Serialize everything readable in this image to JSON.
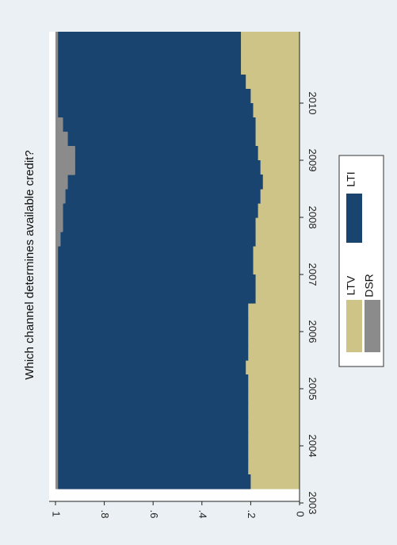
{
  "chart_data": {
    "type": "area",
    "title": "Which channel determines available credit?",
    "xlabel": "",
    "ylabel": "",
    "x": [
      "2003m1",
      "2003m4",
      "2003m7",
      "2003m10",
      "2004m1",
      "2004m4",
      "2004m7",
      "2004m10",
      "2005m1",
      "2005m4",
      "2005m7",
      "2005m10",
      "2006m1",
      "2006m4",
      "2006m7",
      "2006m10",
      "2007m1",
      "2007m4",
      "2007m7",
      "2007m10",
      "2008m1",
      "2008m4",
      "2008m7",
      "2008m10",
      "2009m1",
      "2009m4",
      "2009m7",
      "2009m10",
      "2010m1",
      "2010m4",
      "2010m7",
      "2010m10"
    ],
    "xtick_labels": [
      "2003",
      "2004",
      "2005",
      "2006",
      "2007",
      "2008",
      "2009",
      "2010"
    ],
    "ylim": [
      0,
      1
    ],
    "ytick_labels": [
      "0",
      ".2",
      ".4",
      ".6",
      ".8",
      "1"
    ],
    "ytick_values": [
      0,
      0.2,
      0.4,
      0.6,
      0.8,
      1
    ],
    "stacking": "cumulative shares, LTV at the base, then LTI, then DSR",
    "series": [
      {
        "name": "LTV",
        "color": "#cfc487",
        "values": [
          0.2,
          0.21,
          0.21,
          0.21,
          0.21,
          0.21,
          0.21,
          0.21,
          0.22,
          0.21,
          0.21,
          0.21,
          0.21,
          0.18,
          0.18,
          0.19,
          0.19,
          0.18,
          0.18,
          0.17,
          0.16,
          0.15,
          0.16,
          0.17,
          0.18,
          0.18,
          0.19,
          0.2,
          0.22,
          0.24,
          0.24,
          0.24
        ]
      },
      {
        "name": "LTI",
        "color": "#1a4470",
        "values": [
          0.79,
          0.78,
          0.78,
          0.78,
          0.78,
          0.78,
          0.78,
          0.78,
          0.77,
          0.78,
          0.78,
          0.78,
          0.78,
          0.81,
          0.81,
          0.8,
          0.8,
          0.8,
          0.79,
          0.8,
          0.8,
          0.8,
          0.76,
          0.75,
          0.77,
          0.79,
          0.8,
          0.79,
          0.77,
          0.75,
          0.75,
          0.75
        ]
      },
      {
        "name": "DSR",
        "color": "#8b8b8b",
        "values": [
          0.01,
          0.01,
          0.01,
          0.01,
          0.01,
          0.01,
          0.01,
          0.01,
          0.01,
          0.01,
          0.01,
          0.01,
          0.01,
          0.01,
          0.01,
          0.01,
          0.01,
          0.02,
          0.03,
          0.03,
          0.04,
          0.05,
          0.08,
          0.08,
          0.05,
          0.03,
          0.01,
          0.01,
          0.01,
          0.01,
          0.01,
          0.01
        ]
      }
    ],
    "legend": {
      "position": "right",
      "entries": [
        {
          "label": "LTV",
          "color": "#cfc487"
        },
        {
          "label": "LTI",
          "color": "#1a4470"
        },
        {
          "label": "DSR",
          "color": "#8b8b8b"
        }
      ]
    },
    "grid": false,
    "rotated": "figure rotated 90 degrees clockwise"
  }
}
